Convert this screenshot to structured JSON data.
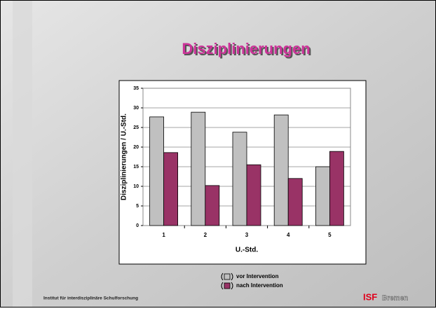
{
  "chart_data": {
    "type": "bar",
    "title": "Disziplinierungen",
    "x_label": "U.-Std.",
    "y_label": "Disziplinierungen / U.-Std.",
    "categories": [
      "1",
      "2",
      "3",
      "4",
      "5"
    ],
    "series": [
      {
        "name": "vor Intervention",
        "color": "#c0c0c0",
        "values": [
          27.7,
          28.9,
          23.8,
          28.2,
          15.0
        ]
      },
      {
        "name": "nach Intervention",
        "color": "#993366",
        "values": [
          18.6,
          10.2,
          15.5,
          12.0,
          18.9
        ]
      }
    ],
    "ylim": [
      0,
      35
    ],
    "yticks": [
      0,
      5,
      10,
      15,
      20,
      25,
      30,
      35
    ],
    "grid": true
  },
  "footer": {
    "institute": "Institut für interdisziplinäre Schulforschung",
    "logo_mark": "ISF",
    "logo_city": "Bremen"
  }
}
